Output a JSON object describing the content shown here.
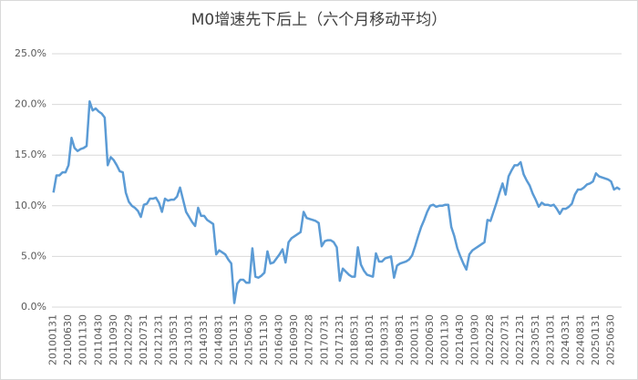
{
  "chart_data": {
    "type": "line",
    "title": "M0增速先下后上（六个月移动平均）",
    "categories": [
      "20100131",
      null,
      null,
      null,
      null,
      "20100630",
      null,
      null,
      null,
      null,
      "20101130",
      null,
      null,
      null,
      null,
      "20110430",
      null,
      null,
      null,
      null,
      "20110930",
      null,
      null,
      null,
      null,
      "20120229",
      null,
      null,
      null,
      null,
      "20120731",
      null,
      null,
      null,
      null,
      "20121231",
      null,
      null,
      null,
      null,
      "20130531",
      null,
      null,
      null,
      null,
      "20131031",
      null,
      null,
      null,
      null,
      "20140331",
      null,
      null,
      null,
      null,
      "20140831",
      null,
      null,
      null,
      null,
      "20150131",
      null,
      null,
      null,
      null,
      "20150630",
      null,
      null,
      null,
      null,
      "20151130",
      null,
      null,
      null,
      null,
      "20160430",
      null,
      null,
      null,
      null,
      "20160930",
      null,
      null,
      null,
      null,
      "20170228",
      null,
      null,
      null,
      null,
      "20170731",
      null,
      null,
      null,
      null,
      "20171231",
      null,
      null,
      null,
      null,
      "20180531",
      null,
      null,
      null,
      null,
      "20181031",
      null,
      null,
      null,
      null,
      "20190331",
      null,
      null,
      null,
      null,
      "20190831",
      null,
      null,
      null,
      null,
      "20200131",
      null,
      null,
      null,
      null,
      "20200630",
      null,
      null,
      null,
      null,
      "20201130",
      null,
      null,
      null,
      null,
      "20210430",
      null,
      null,
      null,
      null,
      "20210930",
      null,
      null,
      null,
      null,
      "20220228",
      null,
      null,
      null,
      null,
      "20220731",
      null,
      null,
      null,
      null,
      "20221231",
      null,
      null,
      null,
      null,
      "20230531",
      null,
      null,
      null,
      null,
      "20231031",
      null,
      null,
      null,
      null,
      "20240331",
      null,
      null,
      null,
      null,
      "20240831",
      null,
      null,
      null,
      null,
      "20250131",
      null,
      null,
      null,
      null,
      "20250630",
      null,
      null,
      null
    ],
    "values": [
      11.3,
      13.0,
      13.0,
      13.3,
      13.3,
      14.0,
      16.7,
      15.7,
      15.4,
      15.6,
      15.7,
      15.9,
      20.3,
      19.4,
      19.6,
      19.3,
      19.1,
      18.7,
      14.0,
      14.8,
      14.5,
      14.0,
      13.4,
      13.3,
      11.3,
      10.4,
      10.0,
      9.8,
      9.5,
      8.9,
      10.1,
      10.2,
      10.7,
      10.7,
      10.8,
      10.3,
      9.4,
      10.7,
      10.5,
      10.6,
      10.6,
      10.9,
      11.8,
      10.6,
      9.4,
      8.9,
      8.4,
      8.0,
      9.8,
      9.0,
      9.0,
      8.6,
      8.4,
      8.2,
      5.2,
      5.6,
      5.4,
      5.2,
      4.7,
      4.3,
      0.4,
      2.3,
      2.7,
      2.7,
      2.4,
      2.4,
      5.8,
      3.0,
      2.9,
      3.1,
      3.4,
      5.5,
      4.3,
      4.4,
      4.8,
      5.2,
      5.7,
      4.4,
      6.4,
      6.8,
      7.0,
      7.2,
      7.4,
      9.4,
      8.8,
      8.7,
      8.6,
      8.5,
      8.3,
      6.0,
      6.5,
      6.6,
      6.6,
      6.4,
      5.9,
      2.6,
      3.8,
      3.5,
      3.2,
      3.0,
      3.0,
      5.9,
      4.2,
      3.6,
      3.2,
      3.1,
      3.0,
      5.3,
      4.5,
      4.5,
      4.8,
      4.9,
      5.0,
      2.9,
      4.1,
      4.3,
      4.4,
      4.5,
      4.7,
      5.1,
      6.0,
      7.0,
      7.9,
      8.6,
      9.4,
      10.0,
      10.1,
      9.9,
      10.0,
      10.0,
      10.1,
      10.1,
      7.9,
      7.0,
      5.8,
      5.0,
      4.3,
      3.7,
      5.2,
      5.6,
      5.8,
      6.0,
      6.2,
      6.4,
      8.6,
      8.5,
      9.4,
      10.3,
      11.3,
      12.2,
      11.1,
      12.9,
      13.5,
      14.0,
      14.0,
      14.3,
      13.1,
      12.5,
      12.0,
      11.2,
      10.6,
      9.9,
      10.3,
      10.1,
      10.1,
      10.0,
      10.1,
      9.7,
      9.2,
      9.7,
      9.7,
      9.9,
      10.2,
      11.1,
      11.6,
      11.6,
      11.8,
      12.1,
      12.2,
      12.4,
      13.2,
      12.9,
      12.8,
      12.7,
      12.6,
      12.4,
      11.6,
      11.8,
      11.6
    ],
    "color": "#5b9bd5",
    "ylim": [
      0,
      25
    ],
    "yticks": [
      {
        "value": 0,
        "label": "0.0%"
      },
      {
        "value": 5,
        "label": "5.0%"
      },
      {
        "value": 10,
        "label": "10.0%"
      },
      {
        "value": 15,
        "label": "15.0%"
      },
      {
        "value": 20,
        "label": "20.0%"
      },
      {
        "value": 25,
        "label": "25.0%"
      }
    ],
    "grid": true
  }
}
